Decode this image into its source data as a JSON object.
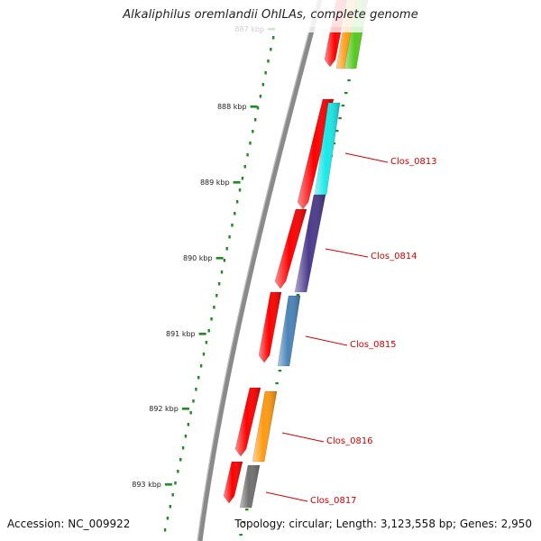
{
  "title": "Alkaliphilus oremlandii OhILAs, complete genome",
  "footer": {
    "accession": "Accession: NC_009922",
    "summary": "Topology: circular; Length: 3,123,558 bp; Genes: 2,950"
  },
  "colors": {
    "forward_gene": "#ff0000",
    "backbone": "#8a8a8a",
    "tick": "#1e8c1e",
    "label": "#d40000",
    "Clos_0813": "#19e8e8",
    "Clos_0814": "#4b3a8c",
    "Clos_0815": "#4a84b8",
    "Clos_0816": "#ff9a10",
    "Clos_0817": "#707070",
    "top_orange": "#ff9a10",
    "top_green": "#55c81e"
  },
  "ticks": [
    {
      "label": "887 kbp"
    },
    {
      "label": "888 kbp"
    },
    {
      "label": "889 kbp"
    },
    {
      "label": "890 kbp"
    },
    {
      "label": "891 kbp"
    },
    {
      "label": "892 kbp"
    },
    {
      "label": "893 kbp"
    }
  ],
  "genes": [
    {
      "label": "Clos_0813",
      "strand": "forward"
    },
    {
      "label": "Clos_0814",
      "strand": "forward"
    },
    {
      "label": "Clos_0815",
      "strand": "forward"
    },
    {
      "label": "Clos_0816",
      "strand": "forward"
    },
    {
      "label": "Clos_0817",
      "strand": "forward"
    }
  ]
}
